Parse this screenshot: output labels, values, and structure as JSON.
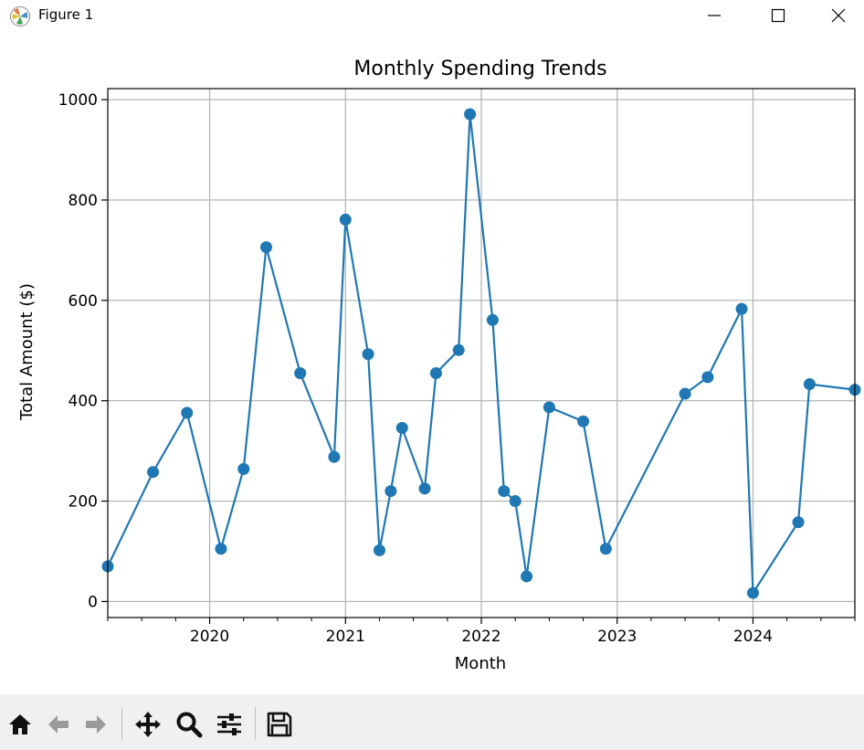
{
  "window": {
    "title": "Figure 1",
    "icons": [
      "matplotlib-logo-icon",
      "minimize-icon",
      "maximize-icon",
      "close-icon"
    ]
  },
  "toolbar": {
    "buttons": [
      {
        "name": "home-icon"
      },
      {
        "name": "back-arrow-icon"
      },
      {
        "name": "forward-arrow-icon"
      },
      {
        "name": "pan-move-icon"
      },
      {
        "name": "zoom-magnifier-icon"
      },
      {
        "name": "configure-subplots-icon"
      },
      {
        "name": "save-floppy-icon"
      }
    ]
  },
  "chart_data": {
    "type": "line",
    "title": "Monthly Spending Trends",
    "xlabel": "Month",
    "ylabel": "Total Amount ($)",
    "x_tick_labels": [
      "2020",
      "2021",
      "2022",
      "2023",
      "2024"
    ],
    "y_tick_labels": [
      "0",
      "200",
      "400",
      "600",
      "800",
      "1000"
    ],
    "y_ticks": [
      0,
      200,
      400,
      600,
      800,
      1000
    ],
    "xlim": [
      "2019-04",
      "2024-10"
    ],
    "ylim": [
      -32,
      1022
    ],
    "grid": true,
    "marker": "circle",
    "color": "#1f77b4",
    "series": [
      {
        "points": [
          {
            "x": "2019-04",
            "y": 70
          },
          {
            "x": "2019-08",
            "y": 258
          },
          {
            "x": "2019-11",
            "y": 376
          },
          {
            "x": "2020-02",
            "y": 105
          },
          {
            "x": "2020-04",
            "y": 264
          },
          {
            "x": "2020-06",
            "y": 706
          },
          {
            "x": "2020-09",
            "y": 455
          },
          {
            "x": "2020-12",
            "y": 288
          },
          {
            "x": "2021-01",
            "y": 761
          },
          {
            "x": "2021-03",
            "y": 493
          },
          {
            "x": "2021-04",
            "y": 102
          },
          {
            "x": "2021-05",
            "y": 220
          },
          {
            "x": "2021-06",
            "y": 346
          },
          {
            "x": "2021-08",
            "y": 225
          },
          {
            "x": "2021-09",
            "y": 455
          },
          {
            "x": "2021-11",
            "y": 501
          },
          {
            "x": "2021-12",
            "y": 971
          },
          {
            "x": "2022-02",
            "y": 561
          },
          {
            "x": "2022-03",
            "y": 220
          },
          {
            "x": "2022-04",
            "y": 200
          },
          {
            "x": "2022-05",
            "y": 50
          },
          {
            "x": "2022-07",
            "y": 387
          },
          {
            "x": "2022-10",
            "y": 359
          },
          {
            "x": "2022-12",
            "y": 105
          },
          {
            "x": "2023-07",
            "y": 414
          },
          {
            "x": "2023-09",
            "y": 447
          },
          {
            "x": "2023-12",
            "y": 583
          },
          {
            "x": "2024-01",
            "y": 17
          },
          {
            "x": "2024-05",
            "y": 158
          },
          {
            "x": "2024-06",
            "y": 433
          },
          {
            "x": "2024-10",
            "y": 422
          }
        ]
      }
    ]
  }
}
